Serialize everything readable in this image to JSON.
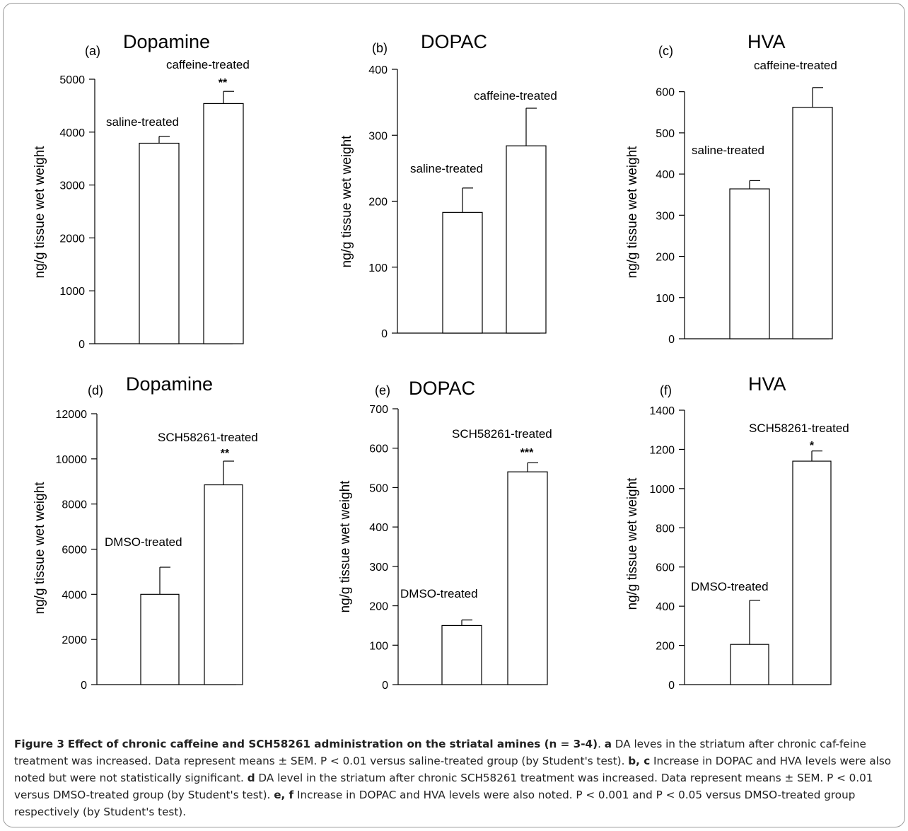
{
  "chart_data": [
    {
      "type": "bar",
      "panel": "(a)",
      "title": "Dopamine",
      "ylabel": "ng/g  tissue wet weight",
      "ylim": [
        0,
        5000
      ],
      "yticks": [
        0,
        1000,
        2000,
        3000,
        4000,
        5000
      ],
      "categories": [
        "saline-treated",
        "caffeine-treated"
      ],
      "values": [
        3790,
        4540
      ],
      "errors": [
        130,
        230
      ],
      "significance": [
        "",
        "**"
      ]
    },
    {
      "type": "bar",
      "panel": "(b)",
      "title": "DOPAC",
      "ylabel": "ng/g tissue wet weight",
      "ylim": [
        0,
        400
      ],
      "yticks": [
        0,
        100,
        200,
        300,
        400
      ],
      "categories": [
        "saline-treated",
        "caffeine-treated"
      ],
      "values": [
        183,
        284
      ],
      "errors": [
        37,
        57
      ],
      "significance": [
        "",
        ""
      ]
    },
    {
      "type": "bar",
      "panel": "(c)",
      "title": "HVA",
      "ylabel": "ng/g tissue wet weight",
      "ylim": [
        0,
        620
      ],
      "yticks": [
        0,
        100,
        200,
        300,
        400,
        500,
        600
      ],
      "categories": [
        "saline-treated",
        "caffeine-treated"
      ],
      "values": [
        364,
        562
      ],
      "errors": [
        20,
        48
      ],
      "significance": [
        "",
        ""
      ]
    },
    {
      "type": "bar",
      "panel": "(d)",
      "title": "Dopamine",
      "ylabel": "ng/g tissue wet weight",
      "ylim": [
        0,
        12000
      ],
      "yticks": [
        0,
        2000,
        4000,
        6000,
        8000,
        10000,
        12000
      ],
      "categories": [
        "DMSO-treated",
        "SCH58261-treated"
      ],
      "values": [
        4000,
        8850
      ],
      "errors": [
        1200,
        1050
      ],
      "significance": [
        "",
        "**"
      ]
    },
    {
      "type": "bar",
      "panel": "(e)",
      "title": "DOPAC",
      "ylabel": "ng/g tissue wet weight",
      "ylim": [
        0,
        700
      ],
      "yticks": [
        0,
        100,
        200,
        300,
        400,
        500,
        600,
        700
      ],
      "categories": [
        "DMSO-treated",
        "SCH58261-treated"
      ],
      "values": [
        150,
        540
      ],
      "errors": [
        14,
        23
      ],
      "significance": [
        "",
        "***"
      ]
    },
    {
      "type": "bar",
      "panel": "(f)",
      "title": "HVA",
      "ylabel": "ng/g tissue wet weight",
      "ylim": [
        0,
        1400
      ],
      "yticks": [
        0,
        200,
        400,
        600,
        800,
        1000,
        1200,
        1400
      ],
      "categories": [
        "DMSO-treated",
        "SCH58261-treated"
      ],
      "values": [
        205,
        1140
      ],
      "errors": [
        225,
        52
      ],
      "significance": [
        "",
        "*"
      ]
    }
  ],
  "caption": {
    "label": "Figure 3",
    "title": "Effect of chronic caffeine and SCH58261 administration on the striatal amines (n = 3-4)",
    "segments": [
      {
        "b": "a"
      },
      {
        "t": " DA leves in the striatum after chronic caf-feine treatment was increased. Data represent means ± SEM. P < 0.01 versus saline-treated group (by Student's test). "
      },
      {
        "b": "b, c"
      },
      {
        "t": " Increase in DOPAC and HVA levels were also noted but were not statistically significant. "
      },
      {
        "b": "d"
      },
      {
        "t": " DA level in the striatum after chronic SCH58261 treatment was increased. Data represent means ± SEM. P < 0.01 versus DMSO-treated group (by Student's test). "
      },
      {
        "b": "e, f"
      },
      {
        "t": " Increase in DOPAC and HVA levels were also noted. P < 0.001 and P < 0.05 versus DMSO-treated group respectively (by Student's test)."
      }
    ]
  }
}
